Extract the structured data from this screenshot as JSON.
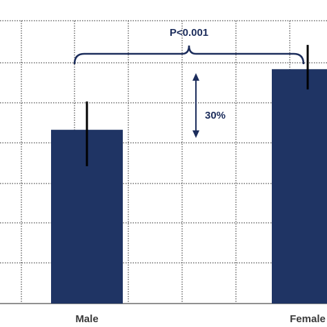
{
  "chart_data": {
    "type": "bar",
    "categories": [
      "Male",
      "Female"
    ],
    "values": [
      4.3,
      5.8
    ],
    "errors": [
      {
        "low": 3.4,
        "high": 5.0
      },
      {
        "low": 5.3,
        "high": 6.4
      }
    ],
    "ylim": [
      0,
      7.0
    ],
    "grid": true,
    "bar_color": "#1f3464",
    "error_color": "#000000",
    "annotations": {
      "significance": "P<0.001",
      "difference": "30%"
    },
    "title": "",
    "xlabel": "",
    "ylabel": ""
  }
}
